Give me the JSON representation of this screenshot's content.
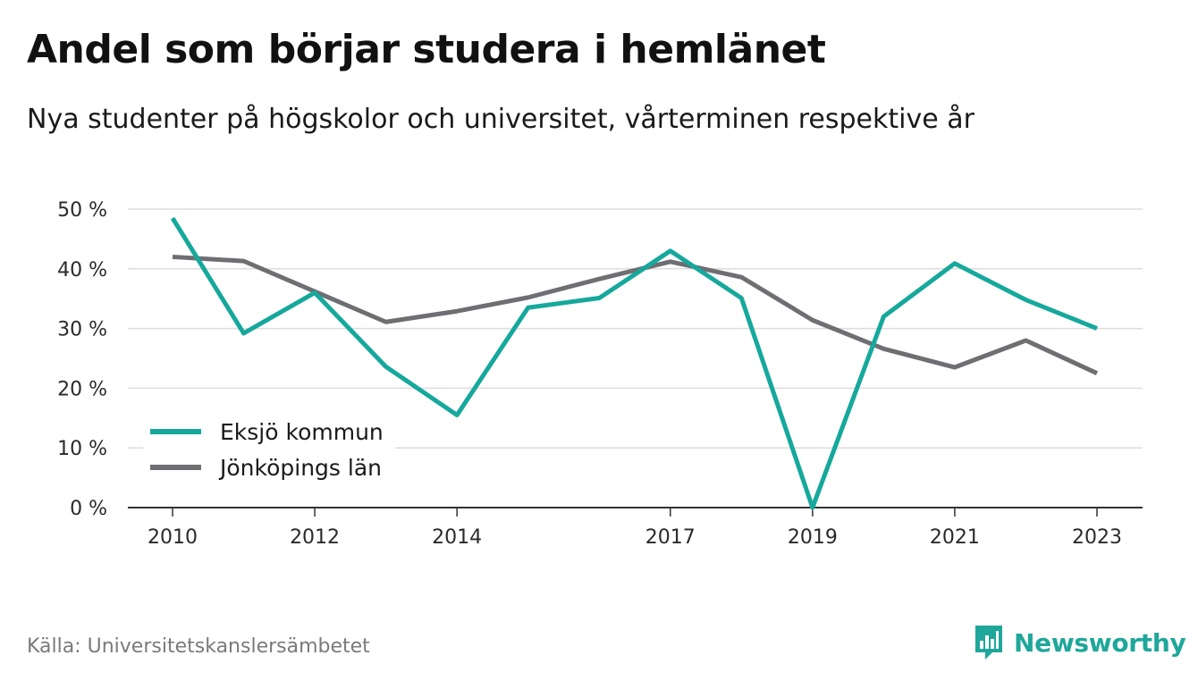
{
  "title": "Andel som börjar studera i hemlänet",
  "subtitle": "Nya studenter på högskolor och universitet, vårterminen respektive år",
  "source": "Källa: Universitetskanslersämbetet",
  "brand": {
    "name": "Newsworthy",
    "icon": "newsworthy-logo-icon",
    "color": "#1fa79b"
  },
  "chart_data": {
    "type": "line",
    "x": [
      2010,
      2011,
      2012,
      2013,
      2014,
      2015,
      2016,
      2017,
      2018,
      2019,
      2020,
      2021,
      2022,
      2023
    ],
    "x_tick_labels": [
      "2010",
      "2012",
      "2014",
      "2017",
      "2019",
      "2021",
      "2023"
    ],
    "y_tick_labels": [
      "0 %",
      "10 %",
      "20 %",
      "30 %",
      "40 %",
      "50 %"
    ],
    "ylim": [
      0,
      50
    ],
    "xlim": [
      2010,
      2023
    ],
    "grid": true,
    "legend_position": "bottom-left",
    "series": [
      {
        "name": "Eksjö kommun",
        "color": "#16a89c",
        "values": [
          48.5,
          29.2,
          36.0,
          23.6,
          15.5,
          33.5,
          35.1,
          43.0,
          35.1,
          0.0,
          32.0,
          40.9,
          34.8,
          30.0
        ]
      },
      {
        "name": "Jönköpings län",
        "color": "#6e6e73",
        "values": [
          42.0,
          41.3,
          36.2,
          31.1,
          32.9,
          35.2,
          38.3,
          41.2,
          38.6,
          31.4,
          26.6,
          23.5,
          28.0,
          22.5
        ]
      }
    ]
  }
}
